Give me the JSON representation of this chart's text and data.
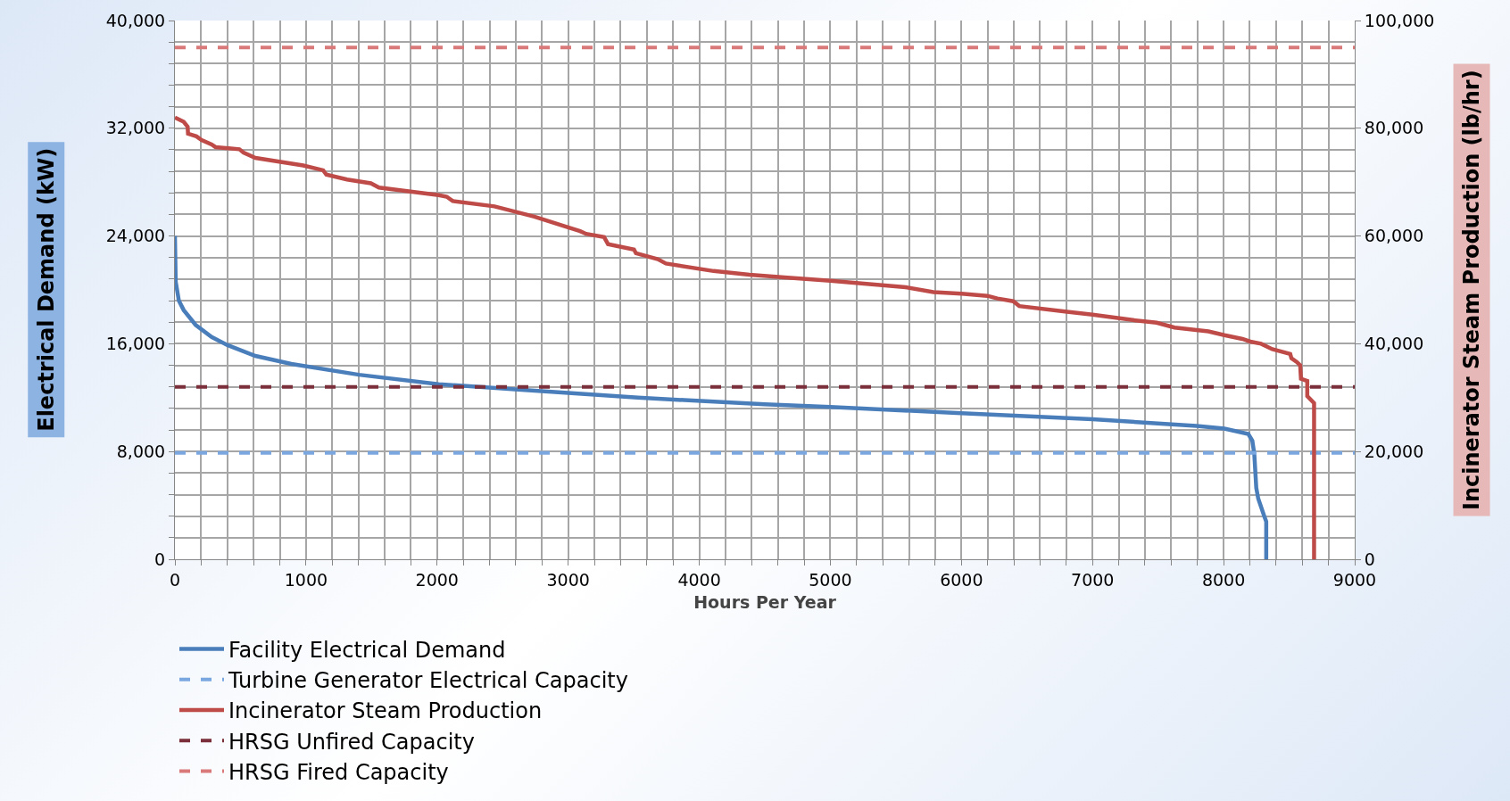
{
  "chart_data": {
    "type": "line",
    "xlabel": "Hours Per Year",
    "ylabel": "Electrical Demand (kW)",
    "y2label": "Incinerator Steam Production (lb/hr)",
    "series": [
      {
        "name": "Facility Electrical Demand",
        "color": "#4a7ebb",
        "x": [
          0,
          6,
          30,
          67,
          158,
          280,
          401,
          614,
          888,
          1404,
          2012,
          2620,
          3532,
          4500,
          5000,
          6000,
          7000,
          7793,
          8006,
          8188,
          8219,
          8234,
          8249,
          8264,
          8310,
          8325,
          8325
        ],
        "values": [
          24000,
          20600,
          19200,
          18500,
          17400,
          16500,
          15900,
          15100,
          14500,
          13700,
          13000,
          12600,
          12000,
          11500,
          11300,
          10850,
          10400,
          9900,
          9700,
          9300,
          8800,
          7800,
          5300,
          4500,
          3200,
          2800,
          0
        ]
      },
      {
        "name": "Turbine Generator Electrical Capacity",
        "color": "#7ba7e0",
        "line_style": "dashed",
        "x": [
          0,
          9000
        ],
        "values": [
          7900,
          7900
        ]
      },
      {
        "name": "Incinerator Steam Production",
        "color": "#be4b48",
        "axis": "y2",
        "x": [
          0,
          67,
          97,
          100,
          164,
          204,
          280,
          310,
          492,
          523,
          614,
          979,
          1131,
          1155,
          1313,
          1495,
          1556,
          2012,
          2073,
          2119,
          2438,
          2742,
          3091,
          3137,
          3274,
          3304,
          3502,
          3517,
          3684,
          3745,
          4109,
          4383,
          4650,
          5000,
          5574,
          5787,
          6000,
          6198,
          6274,
          6395,
          6441,
          6790,
          7000,
          7307,
          7489,
          7626,
          7884,
          8006,
          8143,
          8204,
          8286,
          8371,
          8508,
          8517,
          8559,
          8584,
          8590,
          8638,
          8638,
          8690,
          8690
        ],
        "values": [
          82000,
          81200,
          80300,
          79000,
          78500,
          77800,
          77000,
          76500,
          76100,
          75500,
          74500,
          73100,
          72200,
          71400,
          70500,
          69800,
          69000,
          67600,
          67300,
          66500,
          65500,
          63600,
          60900,
          60400,
          59800,
          58500,
          57500,
          56800,
          55700,
          54900,
          53500,
          52800,
          52300,
          51700,
          50500,
          49600,
          49300,
          48900,
          48400,
          47900,
          47000,
          46000,
          45400,
          44400,
          43900,
          43000,
          42300,
          41600,
          40900,
          40400,
          40000,
          39000,
          38100,
          37300,
          36600,
          36000,
          33500,
          33100,
          30300,
          29000,
          0
        ]
      },
      {
        "name": "HRSG Unfired Capacity",
        "color": "#7a2f3a",
        "line_style": "dashed",
        "axis": "y2",
        "x": [
          0,
          9000
        ],
        "values": [
          32000,
          32000
        ]
      },
      {
        "name": "HRSG Fired Capacity",
        "color": "#d9797a",
        "line_style": "dashed",
        "axis": "y2",
        "x": [
          0,
          9000
        ],
        "values": [
          95000,
          95000
        ]
      }
    ],
    "xlim": [
      0,
      9000
    ],
    "xticks": [
      0,
      {
        "value": 200,
        "label": null
      },
      {
        "value": 400,
        "label": null
      },
      {
        "value": 600,
        "label": null
      },
      {
        "value": 800,
        "label": null
      },
      1000,
      {
        "value": 1200,
        "label": null
      },
      {
        "value": 1400,
        "label": null
      },
      {
        "value": 1600,
        "label": null
      },
      {
        "value": 1800,
        "label": null
      },
      2000,
      {
        "value": 2200,
        "label": null
      },
      {
        "value": 2400,
        "label": null
      },
      {
        "value": 2600,
        "label": null
      },
      {
        "value": 2800,
        "label": null
      },
      3000,
      {
        "value": 3200,
        "label": null
      },
      {
        "value": 3400,
        "label": null
      },
      {
        "value": 3600,
        "label": null
      },
      {
        "value": 3800,
        "label": null
      },
      4000,
      {
        "value": 4200,
        "label": null
      },
      {
        "value": 4400,
        "label": null
      },
      {
        "value": 4600,
        "label": null
      },
      {
        "value": 4800,
        "label": null
      },
      5000,
      {
        "value": 5200,
        "label": null
      },
      {
        "value": 5400,
        "label": null
      },
      {
        "value": 5600,
        "label": null
      },
      {
        "value": 5800,
        "label": null
      },
      6000,
      {
        "value": 6200,
        "label": null
      },
      {
        "value": 6400,
        "label": null
      },
      {
        "value": 6600,
        "label": null
      },
      {
        "value": 6800,
        "label": null
      },
      7000,
      {
        "value": 7200,
        "label": null
      },
      {
        "value": 7400,
        "label": null
      },
      {
        "value": 7600,
        "label": null
      },
      {
        "value": 7800,
        "label": null
      },
      8000,
      {
        "value": 8200,
        "label": null
      },
      {
        "value": 8400,
        "label": null
      },
      {
        "value": 8600,
        "label": null
      },
      {
        "value": 8800,
        "label": null
      },
      9000
    ],
    "ylim": [
      0,
      40000
    ],
    "yticks": [
      0,
      {
        "value": 1600,
        "label": null
      },
      {
        "value": 3200,
        "label": null
      },
      {
        "value": 4800,
        "label": null
      },
      {
        "value": 6400,
        "label": null
      },
      {
        "value": 8000,
        "label": "8,000"
      },
      {
        "value": 9600,
        "label": null
      },
      {
        "value": 11200,
        "label": null
      },
      {
        "value": 12800,
        "label": null
      },
      {
        "value": 14400,
        "label": null
      },
      {
        "value": 16000,
        "label": "16,000"
      },
      {
        "value": 17600,
        "label": null
      },
      {
        "value": 19200,
        "label": null
      },
      {
        "value": 20800,
        "label": null
      },
      {
        "value": 22400,
        "label": null
      },
      {
        "value": 24000,
        "label": "24,000"
      },
      {
        "value": 25600,
        "label": null
      },
      {
        "value": 27200,
        "label": null
      },
      {
        "value": 28800,
        "label": null
      },
      {
        "value": 30400,
        "label": null
      },
      {
        "value": 32000,
        "label": "32,000"
      },
      {
        "value": 33600,
        "label": null
      },
      {
        "value": 35200,
        "label": null
      },
      {
        "value": 36800,
        "label": null
      },
      {
        "value": 38400,
        "label": null
      },
      {
        "value": 40000,
        "label": "40,000"
      }
    ],
    "y2lim": [
      0,
      100000
    ],
    "y2ticks": [
      0,
      {
        "value": 20000,
        "label": "20,000"
      },
      {
        "value": 40000,
        "label": "40,000"
      },
      {
        "value": 60000,
        "label": "60,000"
      },
      {
        "value": 80000,
        "label": "80,000"
      },
      {
        "value": 100000,
        "label": "100,000"
      }
    ],
    "grid": true,
    "legend": "bottom",
    "marker": "none"
  }
}
